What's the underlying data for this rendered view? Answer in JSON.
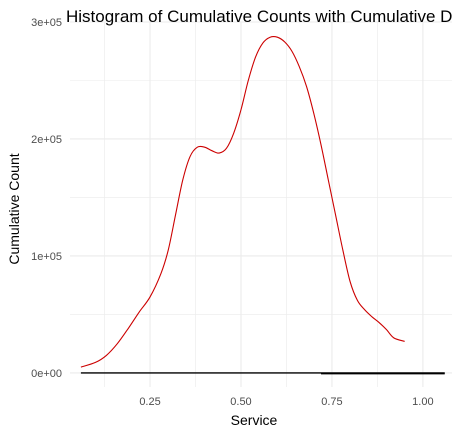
{
  "chart_data": {
    "type": "line",
    "title": "Histogram of Cumulative Counts with Cumulative D",
    "xlabel": "Service",
    "ylabel": "Cumulative Count",
    "xlim": [
      0.03,
      1.08
    ],
    "ylim": [
      -12000,
      300000
    ],
    "x_ticks": [
      0.25,
      0.5,
      0.75,
      1.0
    ],
    "x_tick_labels": [
      "0.25",
      "0.50",
      "0.75",
      "1.00"
    ],
    "y_ticks": [
      0,
      100000,
      200000,
      300000
    ],
    "y_tick_labels": [
      "0e+00",
      "1e+05",
      "2e+05",
      "3e+05"
    ],
    "grid": true,
    "legend": "none",
    "colors": {
      "density": "#cc0000",
      "baseline": "#000000",
      "grid": "#ebebeb"
    },
    "series": [
      {
        "type": "line",
        "color": "#cc0000",
        "x": [
          0.06,
          0.1,
          0.13,
          0.16,
          0.19,
          0.22,
          0.25,
          0.28,
          0.3,
          0.32,
          0.34,
          0.36,
          0.38,
          0.4,
          0.42,
          0.44,
          0.46,
          0.48,
          0.5,
          0.52,
          0.54,
          0.56,
          0.58,
          0.6,
          0.62,
          0.64,
          0.66,
          0.68,
          0.7,
          0.72,
          0.74,
          0.76,
          0.78,
          0.8,
          0.82,
          0.84,
          0.86,
          0.88,
          0.9,
          0.92,
          0.95
        ],
        "y": [
          5000,
          9000,
          15000,
          25000,
          38000,
          52000,
          65000,
          85000,
          105000,
          135000,
          165000,
          185000,
          193000,
          193000,
          190000,
          188000,
          192000,
          205000,
          225000,
          250000,
          270000,
          282000,
          287000,
          287000,
          283000,
          275000,
          262000,
          245000,
          222000,
          195000,
          165000,
          135000,
          105000,
          78000,
          62000,
          54000,
          48000,
          43000,
          37000,
          30000,
          27000
        ]
      },
      {
        "type": "line",
        "color": "#000000",
        "x": [
          0.06,
          1.06
        ],
        "y": [
          0,
          0
        ]
      }
    ]
  }
}
